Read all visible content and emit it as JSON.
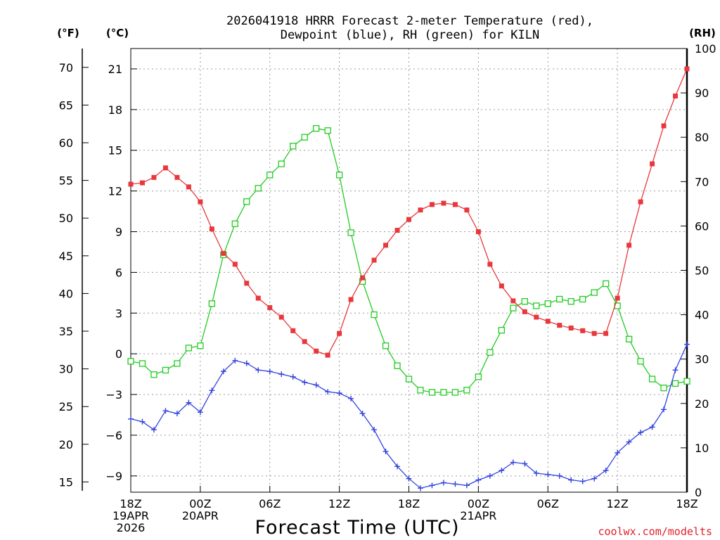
{
  "title_line1": "2026041918 HRRR Forecast 2-meter Temperature (red),",
  "title_line2": "Dewpoint (blue), RH (green) for KILN",
  "xlabel": "Forecast Time (UTC)",
  "credit": "coolwx.com/modelts",
  "units": {
    "f": "(°F)",
    "c": "(°C)",
    "rh": "(RH)"
  },
  "colors": {
    "temperature": "#e8383d",
    "dewpoint": "#3344dd",
    "rh": "#22cc22"
  },
  "chart_data": {
    "type": "line",
    "title": "2026041918 HRRR Forecast 2-meter Temperature (red), Dewpoint (blue), RH (green) for KILN",
    "xlabel": "Forecast Time (UTC)",
    "x_hours": [
      0,
      1,
      2,
      3,
      4,
      5,
      6,
      7,
      8,
      9,
      10,
      11,
      12,
      13,
      14,
      15,
      16,
      17,
      18,
      19,
      20,
      21,
      22,
      23,
      24,
      25,
      26,
      27,
      28,
      29,
      30,
      31,
      32,
      33,
      34,
      35,
      36,
      37,
      38,
      39,
      40,
      41,
      42,
      43,
      44,
      45,
      46,
      47,
      48
    ],
    "xlim": [
      0,
      48
    ],
    "x_ticks": [
      {
        "hour": 0,
        "lines": [
          "18Z",
          "19APR",
          "2026"
        ]
      },
      {
        "hour": 6,
        "lines": [
          "00Z",
          "20APR"
        ]
      },
      {
        "hour": 12,
        "lines": [
          "06Z"
        ]
      },
      {
        "hour": 18,
        "lines": [
          "12Z"
        ]
      },
      {
        "hour": 24,
        "lines": [
          "18Z"
        ]
      },
      {
        "hour": 30,
        "lines": [
          "00Z",
          "21APR"
        ]
      },
      {
        "hour": 36,
        "lines": [
          "06Z"
        ]
      },
      {
        "hour": 42,
        "lines": [
          "12Z"
        ]
      },
      {
        "hour": 48,
        "lines": [
          "18Z"
        ]
      }
    ],
    "y_celsius": {
      "label": "(°C)",
      "lim": [
        -10.2,
        22.5
      ],
      "ticks": [
        "21",
        "18",
        "15",
        "12",
        "9",
        "6",
        "3",
        "0",
        "−3",
        "−6",
        "−9"
      ]
    },
    "y_fahrenheit": {
      "label": "(°F)",
      "ticks": [
        "70",
        "65",
        "60",
        "55",
        "50",
        "45",
        "40",
        "35",
        "30",
        "25",
        "20",
        "15"
      ]
    },
    "y_rh": {
      "label": "(RH)",
      "lim": [
        0,
        100
      ],
      "ticks": [
        "100",
        "90",
        "80",
        "70",
        "60",
        "50",
        "40",
        "30",
        "20",
        "10",
        "0"
      ]
    },
    "series": [
      {
        "name": "Temperature",
        "units": "°C",
        "color": "#e8383d",
        "marker": "filled-square",
        "values": [
          12.5,
          12.6,
          13.0,
          13.7,
          13.0,
          12.3,
          11.2,
          9.2,
          7.4,
          6.6,
          5.2,
          4.1,
          3.4,
          2.7,
          1.7,
          0.9,
          0.2,
          -0.1,
          1.5,
          4.0,
          5.6,
          6.9,
          8.0,
          9.1,
          9.9,
          10.6,
          11.0,
          11.1,
          11.0,
          10.6,
          9.0,
          6.6,
          5.0,
          3.9,
          3.1,
          2.7,
          2.4,
          2.1,
          1.9,
          1.7,
          1.5,
          1.5,
          4.1,
          8.0,
          11.2,
          14.0,
          16.8,
          19.0,
          21.0
        ]
      },
      {
        "name": "Dewpoint",
        "units": "°C",
        "color": "#3344dd",
        "marker": "plus",
        "values": [
          -4.8,
          -5.0,
          -5.6,
          -4.2,
          -4.4,
          -3.6,
          -4.3,
          -2.7,
          -1.3,
          -0.5,
          -0.7,
          -1.2,
          -1.3,
          -1.5,
          -1.7,
          -2.1,
          -2.3,
          -2.8,
          -2.9,
          -3.3,
          -4.4,
          -5.6,
          -7.2,
          -8.3,
          -9.2,
          -9.9,
          -9.7,
          -9.5,
          -9.6,
          -9.7,
          -9.3,
          -9.0,
          -8.6,
          -8.0,
          -8.1,
          -8.8,
          -8.9,
          -9.0,
          -9.3,
          -9.4,
          -9.2,
          -8.6,
          -7.3,
          -6.5,
          -5.8,
          -5.4,
          -4.1,
          -1.2,
          0.7
        ]
      },
      {
        "name": "RH",
        "units": "%",
        "color": "#22cc22",
        "marker": "open-square",
        "axis": "right",
        "values": [
          29.5,
          29.0,
          26.5,
          27.5,
          29.0,
          32.5,
          33.0,
          42.5,
          53.5,
          60.5,
          65.5,
          68.5,
          71.5,
          74.0,
          78.0,
          80.0,
          82.0,
          81.5,
          71.5,
          58.5,
          47.5,
          40.0,
          33.0,
          28.5,
          25.5,
          23.0,
          22.5,
          22.5,
          22.5,
          23.0,
          26.0,
          31.5,
          36.5,
          41.5,
          43.0,
          42.0,
          42.5,
          43.5,
          43.0,
          43.5,
          45.0,
          47.0,
          42.0,
          34.5,
          29.5,
          25.5,
          23.5,
          24.5,
          25.0
        ]
      }
    ]
  }
}
